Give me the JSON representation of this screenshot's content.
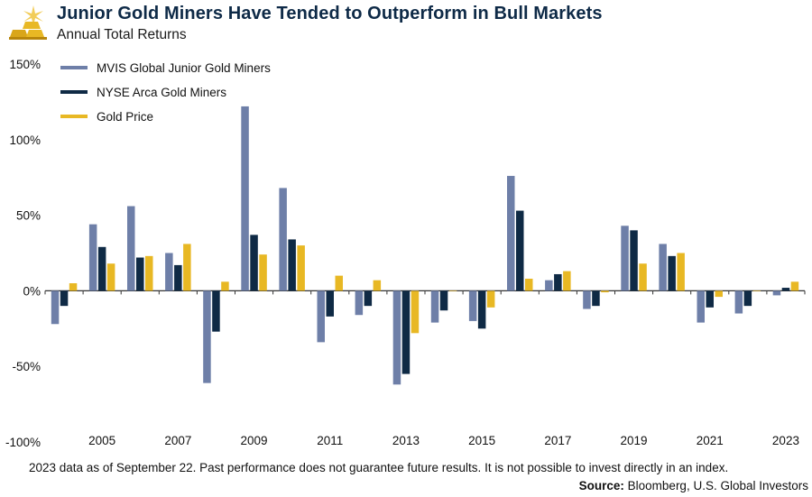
{
  "header": {
    "title": "Junior Gold Miners Have Tended to Outperform in Bull Markets",
    "subtitle": "Annual Total Returns"
  },
  "footer": {
    "note": "2023 data as of September 22. Past performance does not guarantee future results. It is not possible to invest directly in an index.",
    "source_label": "Source:",
    "source_text": "Bloomberg, U.S. Global Investors"
  },
  "colors": {
    "mvis": "#6e7fa8",
    "nyse": "#0f2a45",
    "gold": "#e8b824",
    "title": "#0e2a47"
  },
  "chart_data": {
    "type": "bar",
    "title": "Junior Gold Miners Have Tended to Outperform in Bull Markets",
    "subtitle": "Annual Total Returns",
    "xlabel": "",
    "ylabel": "",
    "ylim": [
      -100,
      150
    ],
    "yticks": [
      150,
      100,
      50,
      0,
      -50,
      -100
    ],
    "ytick_labels": [
      "150%",
      "100%",
      "50%",
      "0%",
      "-50%",
      "-100%"
    ],
    "categories": [
      "2004",
      "2005",
      "2006",
      "2007",
      "2008",
      "2009",
      "2010",
      "2011",
      "2012",
      "2013",
      "2014",
      "2015",
      "2016",
      "2017",
      "2018",
      "2019",
      "2020",
      "2021",
      "2022",
      "2023"
    ],
    "xtick_labels": [
      "",
      "2005",
      "",
      "2007",
      "",
      "2009",
      "",
      "2011",
      "",
      "2013",
      "",
      "2015",
      "",
      "2017",
      "",
      "2019",
      "",
      "2021",
      "",
      "2023"
    ],
    "legend_position": "top-left",
    "series": [
      {
        "name": "MVIS Global Junior Gold Miners",
        "color": "#6e7fa8",
        "values": [
          -22,
          44,
          56,
          25,
          -61,
          122,
          68,
          -34,
          -16,
          -62,
          -21,
          -20,
          76,
          7,
          -12,
          43,
          31,
          -21,
          -15,
          -3
        ]
      },
      {
        "name": "NYSE Arca Gold Miners",
        "color": "#0f2a45",
        "values": [
          -10,
          29,
          22,
          17,
          -27,
          37,
          34,
          -17,
          -10,
          -55,
          -13,
          -25,
          53,
          11,
          -10,
          40,
          23,
          -11,
          -10,
          2
        ]
      },
      {
        "name": "Gold Price",
        "color": "#e8b824",
        "values": [
          5,
          18,
          23,
          31,
          6,
          24,
          30,
          10,
          7,
          -28,
          0,
          -11,
          8,
          13,
          -1,
          18,
          25,
          -4,
          0,
          6
        ]
      }
    ]
  }
}
